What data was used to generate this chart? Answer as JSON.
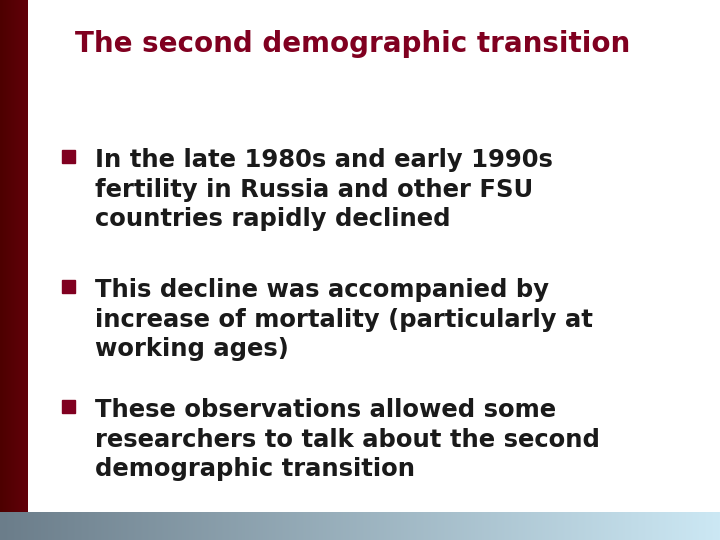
{
  "title": "The second demographic transition",
  "title_color": "#800020",
  "bullet_color": "#800020",
  "text_color": "#1a1a1a",
  "background_color": "#ffffff",
  "left_bar_dark": "#8B0000",
  "left_bar_light": "#5a0010",
  "bottom_bar_left": "#6b7d8a",
  "bottom_bar_right": "#cce8f4",
  "bullets": [
    "In the late 1980s and early 1990s\nfertility in Russia and other FSU\ncountries rapidly declined",
    "This decline was accompanied by\nincrease of mortality (particularly at\nworking ages)",
    "These observations allowed some\nresearchers to talk about the second\ndemographic transition"
  ],
  "figsize": [
    7.2,
    5.4
  ],
  "dpi": 100
}
